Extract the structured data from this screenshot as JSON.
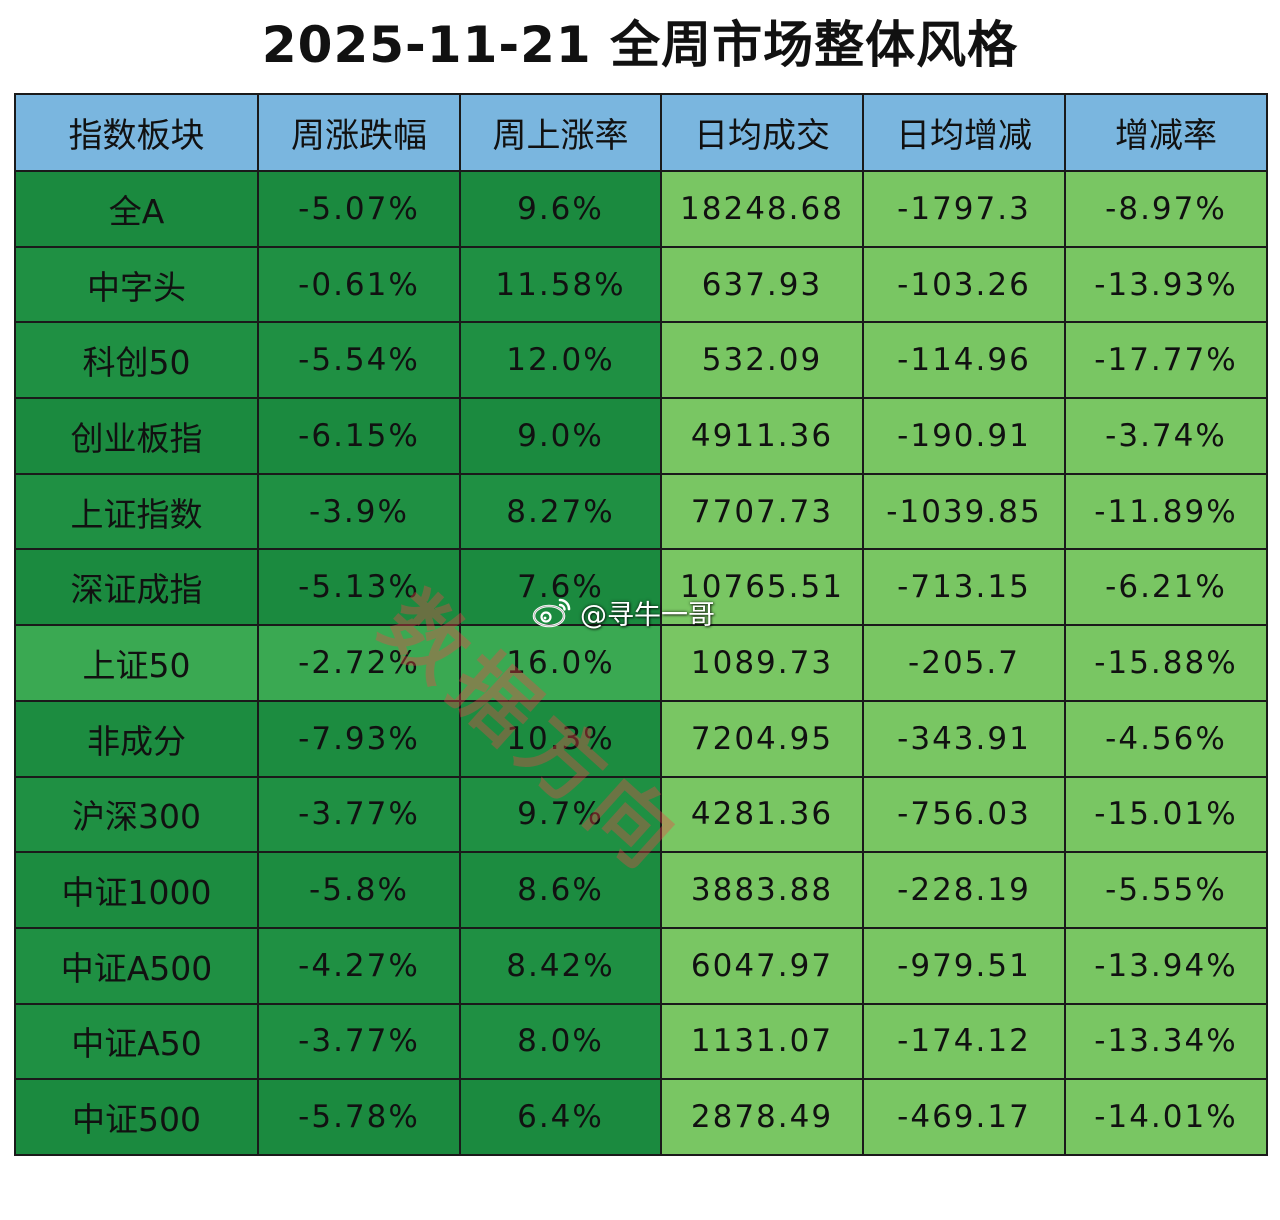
{
  "chart_data": {
    "type": "table",
    "title": "2025-11-21  全周市场整体风格",
    "columns": [
      "指数板块",
      "周涨跌幅",
      "周上涨率",
      "日均成交",
      "日均增减",
      "增减率"
    ],
    "rows": [
      [
        "全A",
        "-5.07%",
        "9.6%",
        "18248.68",
        "-1797.3",
        "-8.97%"
      ],
      [
        "中字头",
        "-0.61%",
        "11.58%",
        "637.93",
        "-103.26",
        "-13.93%"
      ],
      [
        "科创50",
        "-5.54%",
        "12.0%",
        "532.09",
        "-114.96",
        "-17.77%"
      ],
      [
        "创业板指",
        "-6.15%",
        "9.0%",
        "4911.36",
        "-190.91",
        "-3.74%"
      ],
      [
        "上证指数",
        "-3.9%",
        "8.27%",
        "7707.73",
        "-1039.85",
        "-11.89%"
      ],
      [
        "深证成指",
        "-5.13%",
        "7.6%",
        "10765.51",
        "-713.15",
        "-6.21%"
      ],
      [
        "上证50",
        "-2.72%",
        "16.0%",
        "1089.73",
        "-205.7",
        "-15.88%"
      ],
      [
        "非成分",
        "-7.93%",
        "10.3%",
        "7204.95",
        "-343.91",
        "-4.56%"
      ],
      [
        "沪深300",
        "-3.77%",
        "9.7%",
        "4281.36",
        "-756.03",
        "-15.01%"
      ],
      [
        "中证1000",
        "-5.8%",
        "8.6%",
        "3883.88",
        "-228.19",
        "-5.55%"
      ],
      [
        "中证A500",
        "-4.27%",
        "8.42%",
        "6047.97",
        "-979.51",
        "-13.94%"
      ],
      [
        "中证A50",
        "-3.77%",
        "8.0%",
        "1131.07",
        "-174.12",
        "-13.34%"
      ],
      [
        "中证500",
        "-5.78%",
        "6.4%",
        "2878.49",
        "-469.17",
        "-14.01%"
      ]
    ],
    "cell_colors": [
      [
        "#1b8a3f",
        "#1b8a3f",
        "#1b8a3f",
        "#79c663",
        "#79c663",
        "#79c663"
      ],
      [
        "#1f9043",
        "#1f9043",
        "#1f9043",
        "#79c663",
        "#79c663",
        "#79c663"
      ],
      [
        "#1f9043",
        "#1f9043",
        "#1f9043",
        "#79c663",
        "#79c663",
        "#79c663"
      ],
      [
        "#1b8a3f",
        "#1b8a3f",
        "#1b8a3f",
        "#79c663",
        "#79c663",
        "#79c663"
      ],
      [
        "#1f9043",
        "#1f9043",
        "#1f9043",
        "#79c663",
        "#79c663",
        "#79c663"
      ],
      [
        "#1b8a3f",
        "#1b8a3f",
        "#1b8a3f",
        "#79c663",
        "#79c663",
        "#79c663"
      ],
      [
        "#3aa952",
        "#3aa952",
        "#3aa952",
        "#79c663",
        "#79c663",
        "#79c663"
      ],
      [
        "#1c8c40",
        "#1c8c40",
        "#1c8c40",
        "#79c663",
        "#79c663",
        "#79c663"
      ],
      [
        "#1f9043",
        "#1f9043",
        "#1f9043",
        "#79c663",
        "#79c663",
        "#79c663"
      ],
      [
        "#1c8c40",
        "#1c8c40",
        "#1c8c40",
        "#79c663",
        "#79c663",
        "#79c663"
      ],
      [
        "#1f9043",
        "#1f9043",
        "#1f9043",
        "#79c663",
        "#79c663",
        "#79c663"
      ],
      [
        "#1f9043",
        "#1f9043",
        "#1f9043",
        "#79c663",
        "#79c663",
        "#79c663"
      ],
      [
        "#1b8a3f",
        "#1b8a3f",
        "#1b8a3f",
        "#79c663",
        "#79c663",
        "#79c663"
      ]
    ]
  },
  "colors": {
    "header_bg": "#7ab6df",
    "border": "#1a1a1a",
    "watermark": "#eb4646"
  },
  "watermark": {
    "text": "数据方向",
    "weibo_handle": "@寻牛一哥"
  }
}
